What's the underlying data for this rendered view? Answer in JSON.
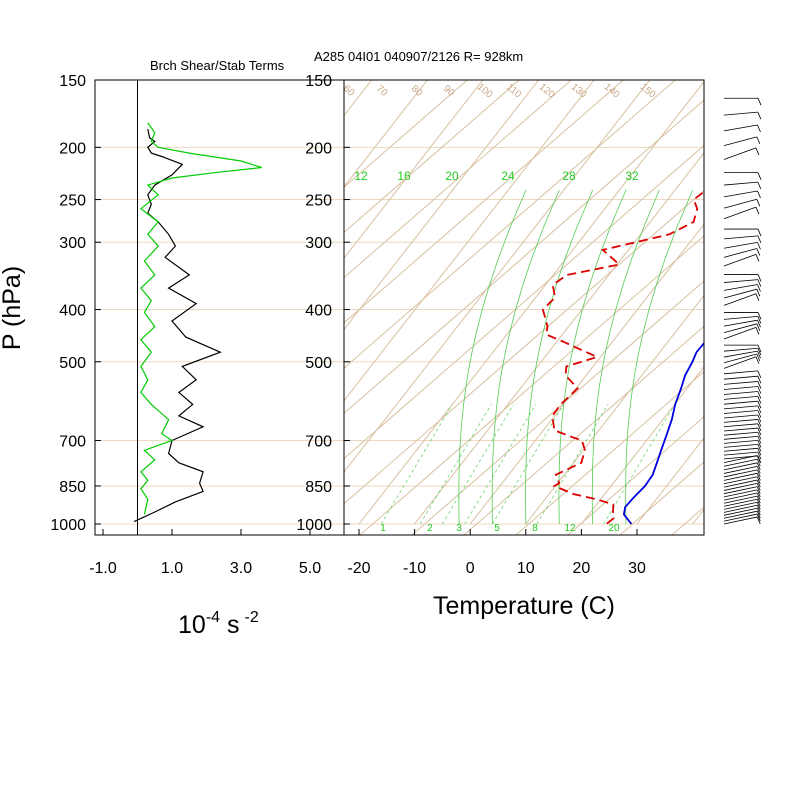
{
  "header": {
    "left_title": "Brch Shear/Stab Terms",
    "right_title": "A285 04I01 040907/2126 R= 928km"
  },
  "chart_data": [
    {
      "type": "line",
      "title": "Brch Shear/Stab Terms",
      "ylabel": "P (hPa)",
      "xlabel_base": "10",
      "xlabel_exp": "-4",
      "xlabel_unit": "s",
      "xlabel_unit_exp": "-2",
      "y_scale": "log",
      "ylim": [
        1000,
        150
      ],
      "xlim": [
        -1.0,
        5.0
      ],
      "x_tick_labels": [
        "-1.0",
        "1.0",
        "3.0",
        "5.0"
      ],
      "x_ticks": [
        -1,
        1,
        3,
        5
      ],
      "pressure_ticks": [
        150,
        200,
        250,
        300,
        400,
        500,
        700,
        850,
        1000
      ],
      "series": [
        {
          "color": "#000000",
          "points": [
            [
              0.3,
              185
            ],
            [
              0.35,
              192
            ],
            [
              0.5,
              195
            ],
            [
              0.3,
              200
            ],
            [
              0.4,
              205
            ],
            [
              0.7,
              208
            ],
            [
              1.3,
              215
            ],
            [
              1.0,
              225
            ],
            [
              0.5,
              235
            ],
            [
              0.3,
              245
            ],
            [
              0.4,
              255
            ],
            [
              0.3,
              265
            ],
            [
              0.6,
              275
            ],
            [
              0.9,
              290
            ],
            [
              1.1,
              305
            ],
            [
              0.8,
              320
            ],
            [
              1.5,
              345
            ],
            [
              0.9,
              365
            ],
            [
              1.7,
              390
            ],
            [
              1.0,
              420
            ],
            [
              1.4,
              450
            ],
            [
              2.4,
              480
            ],
            [
              1.3,
              510
            ],
            [
              1.7,
              540
            ],
            [
              1.2,
              570
            ],
            [
              1.6,
              600
            ],
            [
              1.2,
              630
            ],
            [
              1.9,
              660
            ],
            [
              1.0,
              700
            ],
            [
              0.9,
              740
            ],
            [
              1.2,
              770
            ],
            [
              1.9,
              800
            ],
            [
              1.8,
              840
            ],
            [
              1.9,
              870
            ],
            [
              1.1,
              910
            ],
            [
              0.5,
              950
            ],
            [
              -0.1,
              990
            ]
          ]
        },
        {
          "color": "#00cc00",
          "points": [
            [
              0.3,
              180
            ],
            [
              0.5,
              188
            ],
            [
              0.4,
              195
            ],
            [
              0.6,
              200
            ],
            [
              1.5,
              205
            ],
            [
              3.0,
              212
            ],
            [
              3.6,
              218
            ],
            [
              2.2,
              223
            ],
            [
              1.0,
              228
            ],
            [
              0.3,
              235
            ],
            [
              0.6,
              245
            ],
            [
              0.1,
              260
            ],
            [
              0.6,
              275
            ],
            [
              0.3,
              290
            ],
            [
              0.6,
              305
            ],
            [
              0.2,
              325
            ],
            [
              0.5,
              345
            ],
            [
              0.1,
              365
            ],
            [
              0.4,
              385
            ],
            [
              0.2,
              405
            ],
            [
              0.5,
              430
            ],
            [
              0.1,
              455
            ],
            [
              0.4,
              480
            ],
            [
              0.1,
              510
            ],
            [
              0.3,
              540
            ],
            [
              0.1,
              570
            ],
            [
              0.4,
              600
            ],
            [
              0.9,
              640
            ],
            [
              0.7,
              680
            ],
            [
              1.0,
              700
            ],
            [
              0.2,
              730
            ],
            [
              0.5,
              760
            ],
            [
              0.1,
              800
            ],
            [
              0.3,
              830
            ],
            [
              0.1,
              860
            ],
            [
              0.3,
              900
            ],
            [
              0.2,
              960
            ]
          ]
        }
      ]
    },
    {
      "type": "line",
      "title": "A285 04I01 040907/2126 R= 928km",
      "xlabel": "Temperature (C)",
      "y_scale": "log",
      "ylim": [
        1000,
        150
      ],
      "xlim": [
        -23.4,
        42.4
      ],
      "x_tick_labels": [
        "-20",
        "-10",
        "0",
        "10",
        "20",
        "30"
      ],
      "x_ticks": [
        -20,
        -10,
        0,
        10,
        20,
        30
      ],
      "pressure_ticks": [
        150,
        200,
        250,
        300,
        400,
        500,
        700,
        850,
        1000
      ],
      "skewed_grid_labels": [
        "12",
        "16",
        "20",
        "24",
        "28",
        "32"
      ],
      "mixing_ratio_labels": [
        "1",
        "2",
        "3",
        "5",
        "8",
        "12",
        "20"
      ],
      "theta_labels": [
        "60",
        "70",
        "80",
        "90",
        "100",
        "110",
        "120",
        "130",
        "140",
        "150"
      ],
      "series": [
        {
          "color": "#0000dd",
          "style": "solid",
          "points": [
            [
              -3.2,
              175
            ],
            [
              -1,
              195
            ],
            [
              0.5,
              210
            ],
            [
              2.7,
              230
            ],
            [
              4.8,
              250
            ],
            [
              7.1,
              270
            ],
            [
              9.5,
              290
            ],
            [
              10.3,
              300
            ],
            [
              10.7,
              320
            ],
            [
              12.0,
              340
            ],
            [
              12.5,
              360
            ],
            [
              13.9,
              380
            ],
            [
              14.8,
              400
            ],
            [
              15.9,
              430
            ],
            [
              16.7,
              460
            ],
            [
              16.6,
              480
            ],
            [
              17.2,
              500
            ],
            [
              17.8,
              530
            ],
            [
              18.9,
              560
            ],
            [
              20.1,
              600
            ],
            [
              21.6,
              640
            ],
            [
              23.0,
              690
            ],
            [
              24.0,
              730
            ],
            [
              25.0,
              770
            ],
            [
              25.9,
              810
            ],
            [
              26.1,
              850
            ],
            [
              25.7,
              890
            ],
            [
              25.5,
              930
            ],
            [
              26.3,
              960
            ],
            [
              29.0,
              1000
            ]
          ]
        },
        {
          "color": "#dd0000",
          "style": "dashed",
          "points": [
            [
              -7.3,
              200
            ],
            [
              -5.5,
              210
            ],
            [
              -5.3,
              220
            ],
            [
              -3.5,
              230
            ],
            [
              -4.4,
              240
            ],
            [
              -5.3,
              250
            ],
            [
              -3.4,
              260
            ],
            [
              -2.2,
              275
            ],
            [
              -4.8,
              290
            ],
            [
              -14.6,
              310
            ],
            [
              -9.6,
              330
            ],
            [
              -17.5,
              345
            ],
            [
              -18.7,
              360
            ],
            [
              -16.5,
              380
            ],
            [
              -17.0,
              400
            ],
            [
              -13.8,
              430
            ],
            [
              -12.9,
              445
            ],
            [
              -8.5,
              460
            ],
            [
              -4.5,
              475
            ],
            [
              -0.6,
              490
            ],
            [
              -4.8,
              510
            ],
            [
              -3.7,
              530
            ],
            [
              0.3,
              560
            ],
            [
              -0.5,
              600
            ],
            [
              -0.4,
              630
            ],
            [
              2.0,
              670
            ],
            [
              6.2,
              690
            ],
            [
              8.4,
              700
            ],
            [
              10.3,
              730
            ],
            [
              11.4,
              770
            ],
            [
              8.5,
              810
            ],
            [
              10.3,
              840
            ],
            [
              9.8,
              850
            ],
            [
              14.4,
              880
            ],
            [
              19.3,
              900
            ],
            [
              23.0,
              920
            ],
            [
              24.0,
              950
            ],
            [
              25.0,
              975
            ],
            [
              24.5,
              1000
            ]
          ]
        }
      ]
    },
    {
      "type": "wind_barbs",
      "title": "",
      "pressure_range": [
        1000,
        150
      ],
      "count": 70
    }
  ]
}
